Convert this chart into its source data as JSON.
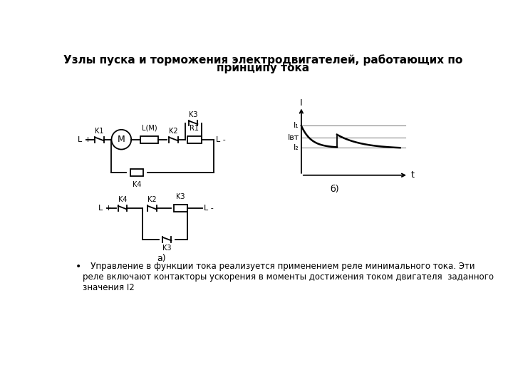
{
  "title_line1": "Узлы пуска и торможения электродвигателей, работающих по",
  "title_line2": "принципу тока",
  "bg_color": "#ffffff",
  "title_fontsize": 11,
  "title_fontweight": "bold",
  "bullet_text": "   Управление в функции тока реализуется применением реле минимального тока. Эти\nреле включают контакторы ускорения в моменты достижения током двигателя  заданного\nзначения I2",
  "label_a": "а)",
  "label_b": "б)",
  "graph_I": "I",
  "graph_t": "t",
  "graph_I1": "I₁",
  "graph_Ivt": "Iвт",
  "graph_I2": "I₂",
  "lw": 1.3,
  "color": "#000000"
}
